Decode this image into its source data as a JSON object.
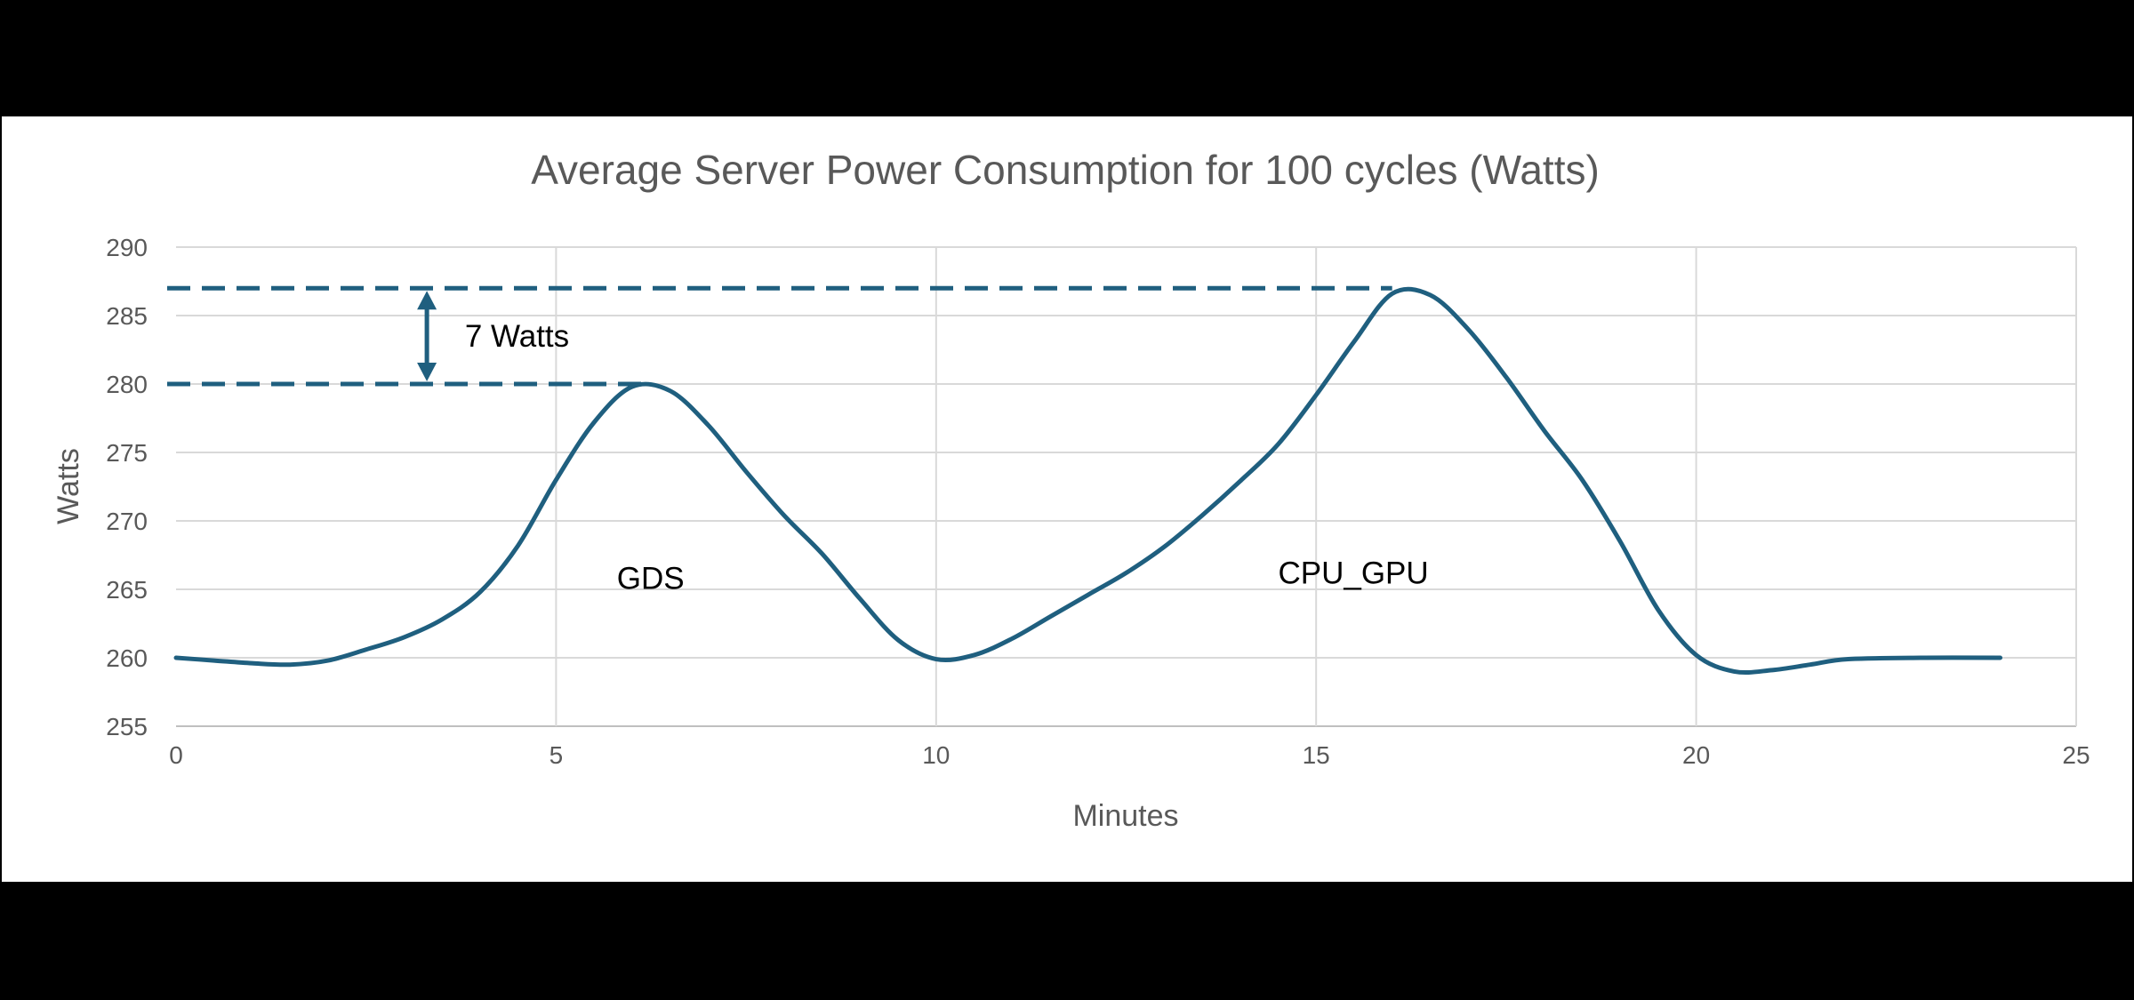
{
  "chart_data": {
    "type": "line",
    "title": "Average Server Power Consumption for 100 cycles (Watts)",
    "xlabel": "Minutes",
    "ylabel": "Watts",
    "xlim": [
      0,
      25
    ],
    "ylim": [
      255,
      290
    ],
    "x_ticks": [
      0,
      5,
      10,
      15,
      20,
      25
    ],
    "y_ticks": [
      255,
      260,
      265,
      270,
      275,
      280,
      285,
      290
    ],
    "grid": true,
    "legend": "none",
    "series": [
      {
        "color": "#1f5f7f",
        "smooth": true,
        "points": [
          [
            0,
            260
          ],
          [
            0.5,
            259.8
          ],
          [
            1,
            259.6
          ],
          [
            1.5,
            259.5
          ],
          [
            2,
            259.8
          ],
          [
            2.5,
            260.6
          ],
          [
            3,
            261.5
          ],
          [
            3.5,
            262.8
          ],
          [
            4,
            264.8
          ],
          [
            4.5,
            268.2
          ],
          [
            5,
            273.0
          ],
          [
            5.5,
            277.2
          ],
          [
            6,
            279.8
          ],
          [
            6.5,
            279.5
          ],
          [
            7,
            277.0
          ],
          [
            7.5,
            273.6
          ],
          [
            8,
            270.4
          ],
          [
            8.5,
            267.6
          ],
          [
            9,
            264.3
          ],
          [
            9.5,
            261.3
          ],
          [
            10,
            259.9
          ],
          [
            10.5,
            260.2
          ],
          [
            11,
            261.4
          ],
          [
            11.5,
            263.0
          ],
          [
            12,
            264.6
          ],
          [
            12.5,
            266.2
          ],
          [
            13,
            268.1
          ],
          [
            13.5,
            270.4
          ],
          [
            14,
            272.9
          ],
          [
            14.5,
            275.6
          ],
          [
            15,
            279.2
          ],
          [
            15.5,
            283.1
          ],
          [
            16,
            286.6
          ],
          [
            16.5,
            286.5
          ],
          [
            17,
            284.0
          ],
          [
            17.5,
            280.5
          ],
          [
            18,
            276.6
          ],
          [
            18.5,
            273.0
          ],
          [
            19,
            268.5
          ],
          [
            19.5,
            263.5
          ],
          [
            20,
            260.2
          ],
          [
            20.5,
            259.0
          ],
          [
            21,
            259.1
          ],
          [
            21.5,
            259.5
          ],
          [
            22,
            259.9
          ],
          [
            23,
            260
          ],
          [
            24,
            260
          ]
        ]
      }
    ],
    "reference_lines": [
      {
        "y": 287,
        "x_start": 0,
        "x_end": 16,
        "style": "dashed",
        "color": "#1f5f7f"
      },
      {
        "y": 280,
        "x_start": 0,
        "x_end": 6.2,
        "style": "dashed",
        "color": "#1f5f7f"
      }
    ],
    "annotations": [
      {
        "text": "7 Watts",
        "x": 3.8,
        "y": 283.5
      },
      {
        "text": "GDS",
        "x": 5.8,
        "y": 265.8
      },
      {
        "text": "CPU_GPU",
        "x": 14.5,
        "y": 266.2
      }
    ],
    "double_arrow": {
      "x": 3.3,
      "y_from": 280,
      "y_to": 287,
      "color": "#1f5f7f"
    }
  }
}
